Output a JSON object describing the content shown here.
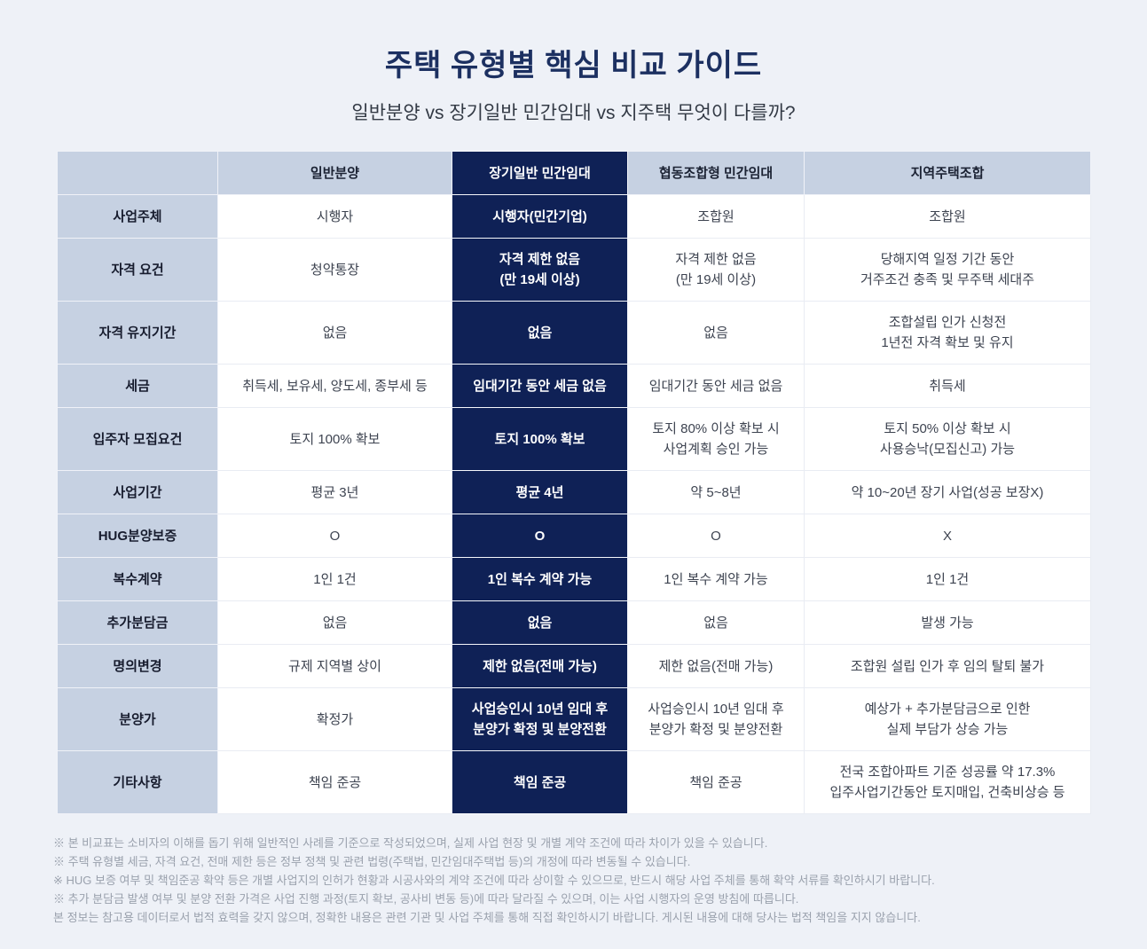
{
  "page": {
    "title": "주택 유형별 핵심 비교 가이드",
    "subtitle": "일반분양 vs 장기일반 민간임대 vs 지주택 무엇이 다를까?"
  },
  "colors": {
    "page_bg": "#eef1f7",
    "header_bg": "#c6d1e2",
    "highlight_bg": "#0f2156",
    "highlight_text": "#ffffff",
    "title_color": "#1c3061",
    "footnote_color": "#9aa1ad"
  },
  "table": {
    "columns": [
      "",
      "일반분양",
      "장기일반 민간임대",
      "협동조합형 민간임대",
      "지역주택조합"
    ],
    "highlight_column_index": 2,
    "rows": [
      {
        "label": "사업주체",
        "tall": false,
        "cells": [
          "시행자",
          "시행자(민간기업)",
          "조합원",
          "조합원"
        ]
      },
      {
        "label": "자격 요건",
        "tall": true,
        "cells": [
          "청약통장",
          "자격 제한 없음\n(만 19세 이상)",
          "자격 제한 없음\n(만 19세 이상)",
          "당해지역 일정 기간 동안\n거주조건 충족 및 무주택 세대주"
        ]
      },
      {
        "label": "자격 유지기간",
        "tall": true,
        "cells": [
          "없음",
          "없음",
          "없음",
          "조합설립 인가 신청전\n1년전 자격 확보 및 유지"
        ]
      },
      {
        "label": "세금",
        "tall": false,
        "cells": [
          "취득세, 보유세, 양도세, 종부세 등",
          "임대기간 동안 세금 없음",
          "임대기간 동안 세금 없음",
          "취득세"
        ]
      },
      {
        "label": "입주자 모집요건",
        "tall": true,
        "cells": [
          "토지 100% 확보",
          "토지 100% 확보",
          "토지 80% 이상 확보 시\n사업계획 승인 가능",
          "토지 50% 이상 확보 시\n사용승낙(모집신고) 가능"
        ]
      },
      {
        "label": "사업기간",
        "tall": false,
        "cells": [
          "평균 3년",
          "평균 4년",
          "약 5~8년",
          "약 10~20년 장기 사업(성공 보장X)"
        ]
      },
      {
        "label": "HUG분양보증",
        "tall": false,
        "cells": [
          "O",
          "O",
          "O",
          "X"
        ]
      },
      {
        "label": "복수계약",
        "tall": false,
        "cells": [
          "1인 1건",
          "1인 복수 계약 가능",
          "1인 복수 계약 가능",
          "1인 1건"
        ]
      },
      {
        "label": "추가분담금",
        "tall": false,
        "cells": [
          "없음",
          "없음",
          "없음",
          "발생 가능"
        ]
      },
      {
        "label": "명의변경",
        "tall": false,
        "cells": [
          "규제 지역별 상이",
          "제한 없음(전매 가능)",
          "제한 없음(전매 가능)",
          "조합원 설립 인가 후 임의 탈퇴 불가"
        ]
      },
      {
        "label": "분양가",
        "tall": true,
        "cells": [
          "확정가",
          "사업승인시 10년 임대 후\n분양가 확정 및 분양전환",
          "사업승인시 10년 임대 후\n분양가 확정 및 분양전환",
          "예상가 + 추가분담금으로 인한\n실제 부담가 상승 가능"
        ]
      },
      {
        "label": "기타사항",
        "tall": true,
        "cells": [
          "책임 준공",
          "책임 준공",
          "책임 준공",
          "전국 조합아파트 기준 성공률 약 17.3%\n입주사업기간동안 토지매입, 건축비상승 등"
        ]
      }
    ]
  },
  "footnotes": [
    "※ 본 비교표는 소비자의 이해를 돕기 위해 일반적인 사례를 기준으로 작성되었으며, 실제 사업 현장 및 개별 계약 조건에 따라 차이가 있을 수 있습니다.",
    "※ 주택 유형별 세금, 자격 요건, 전매 제한 등은 정부 정책 및 관련 법령(주택법, 민간임대주택법 등)의 개정에 따라 변동될 수 있습니다.",
    "※ HUG 보증 여부 및 책임준공 확약 등은 개별 사업지의 인허가 현황과 시공사와의 계약 조건에 따라 상이할 수 있으므로, 반드시 해당 사업 주체를 통해 확약 서류를 확인하시기 바랍니다.",
    "※ 추가 분담금 발생 여부 및 분양 전환 가격은 사업 진행 과정(토지 확보, 공사비 변동 등)에 따라 달라질 수 있으며, 이는 사업 시행자의 운영 방침에 따릅니다.",
    "본 정보는 참고용 데이터로서 법적 효력을 갖지 않으며, 정확한 내용은 관련 기관 및 사업 주체를 통해 직접 확인하시기 바랍니다. 게시된 내용에 대해 당사는 법적 책임을 지지 않습니다."
  ]
}
